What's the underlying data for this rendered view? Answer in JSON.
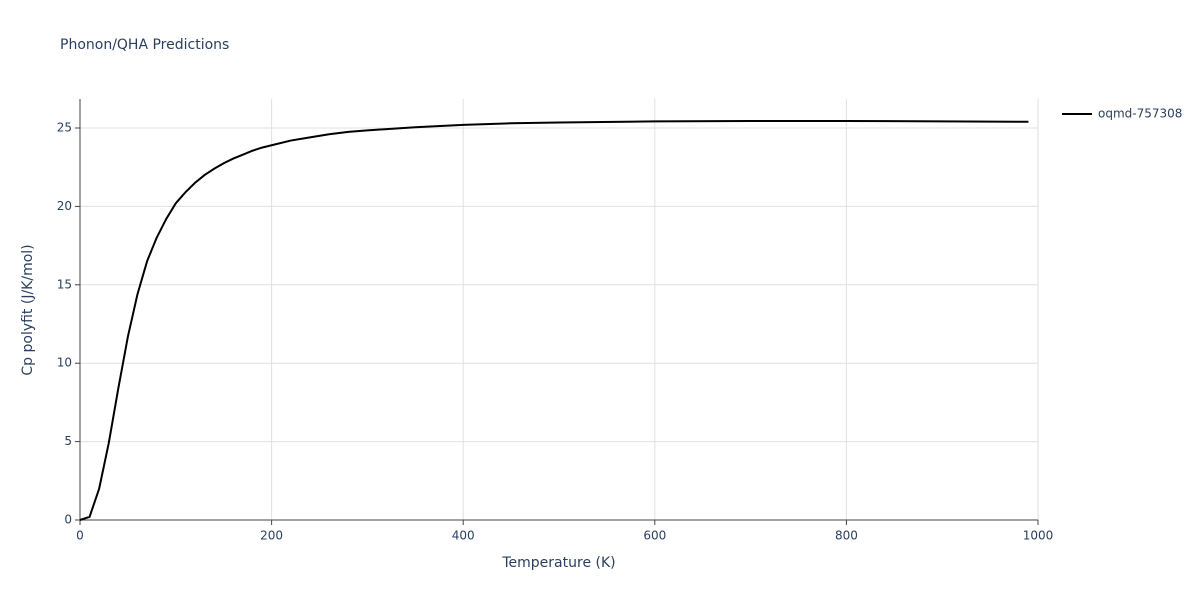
{
  "chart_data": {
    "type": "line",
    "title": "Phonon/QHA Predictions",
    "x_label": "Temperature (K)",
    "y_label": "Cp polyfit (J/K/mol)",
    "x": [
      0,
      10,
      20,
      30,
      40,
      50,
      60,
      70,
      80,
      90,
      100,
      110,
      120,
      130,
      140,
      150,
      160,
      170,
      180,
      190,
      200,
      220,
      240,
      260,
      280,
      300,
      350,
      400,
      450,
      500,
      600,
      700,
      800,
      900,
      990
    ],
    "series": [
      {
        "name": "oqmd-757308",
        "color": "#000000",
        "values": [
          0,
          0.2,
          2.0,
          4.9,
          8.4,
          11.7,
          14.4,
          16.5,
          18.0,
          19.2,
          20.2,
          20.9,
          21.5,
          22.0,
          22.4,
          22.75,
          23.05,
          23.3,
          23.55,
          23.75,
          23.9,
          24.2,
          24.4,
          24.6,
          24.75,
          24.85,
          25.05,
          25.2,
          25.3,
          25.35,
          25.42,
          25.45,
          25.45,
          25.42,
          25.4
        ]
      }
    ],
    "xlim": [
      0,
      1000
    ],
    "xticks": [
      0,
      200,
      400,
      600,
      800,
      1000
    ],
    "ylim": [
      0,
      26.85
    ],
    "yticks": [
      0,
      5,
      10,
      15,
      20,
      25
    ],
    "grid": true,
    "legend": "top-right"
  }
}
